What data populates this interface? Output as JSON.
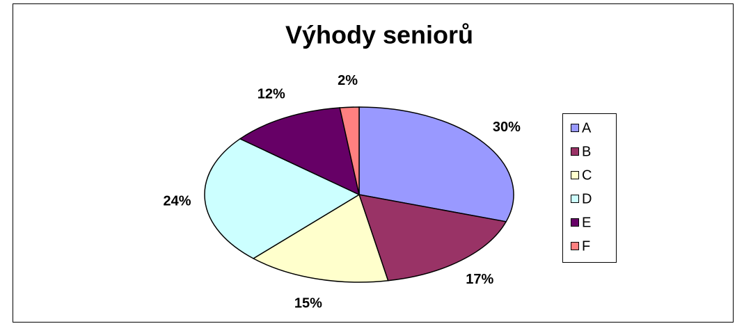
{
  "chart_data": {
    "type": "pie",
    "title": "Výhody seniorů",
    "categories": [
      "A",
      "B",
      "C",
      "D",
      "E",
      "F"
    ],
    "values": [
      30,
      17,
      15,
      24,
      12,
      2
    ],
    "value_labels": [
      "30%",
      "17%",
      "15%",
      "24%",
      "12%",
      "2%"
    ],
    "colors": [
      "#9999ff",
      "#993366",
      "#ffffcc",
      "#ccffff",
      "#660066",
      "#ff8080"
    ],
    "legend": "right"
  }
}
